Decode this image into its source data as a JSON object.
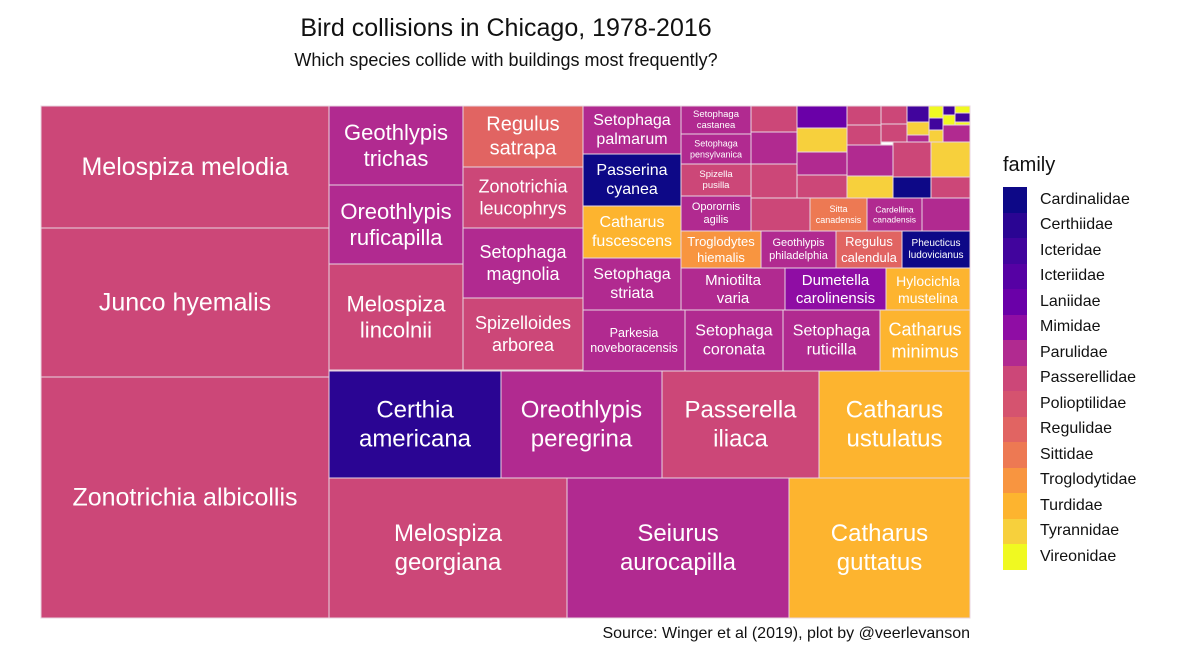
{
  "header": {
    "title": "Bird collisions in Chicago, 1978-2016",
    "subtitle": "Which species collide with buildings most frequently?"
  },
  "footer": {
    "caption": "Source: Winger et al (2019), plot by @veerlevanson"
  },
  "legend": {
    "title": "family",
    "items": [
      {
        "label": "Cardinalidae",
        "color": "#0d0887"
      },
      {
        "label": "Certhiidae",
        "color": "#2a0593"
      },
      {
        "label": "Icteridae",
        "color": "#41049d"
      },
      {
        "label": "Icteriidae",
        "color": "#5601a4"
      },
      {
        "label": "Laniidae",
        "color": "#6a00a8"
      },
      {
        "label": "Mimidae",
        "color": "#8f0da4"
      },
      {
        "label": "Parulidae",
        "color": "#b12a90"
      },
      {
        "label": "Passerellidae",
        "color": "#cc4778"
      },
      {
        "label": "Polioptilidae",
        "color": "#d5536f"
      },
      {
        "label": "Regulidae",
        "color": "#e16462"
      },
      {
        "label": "Sittidae",
        "color": "#ed7953"
      },
      {
        "label": "Troglodytidae",
        "color": "#f89540"
      },
      {
        "label": "Turdidae",
        "color": "#fdb42f"
      },
      {
        "label": "Tyrannidae",
        "color": "#f7d03c"
      },
      {
        "label": "Vireonidae",
        "color": "#f0f921"
      }
    ]
  },
  "chart_data": {
    "type": "treemap",
    "title": "Bird collisions in Chicago, 1978-2016",
    "subtitle": "Which species collide with buildings most frequently?",
    "legend_position": "right",
    "tiles": [
      {
        "species": "Melospiza melodia",
        "family": "Passerellidae"
      },
      {
        "species": "Junco hyemalis",
        "family": "Passerellidae"
      },
      {
        "species": "Zonotrichia albicollis",
        "family": "Passerellidae"
      },
      {
        "species": "Geothlypis trichas",
        "family": "Parulidae"
      },
      {
        "species": "Oreothlypis ruficapilla",
        "family": "Parulidae"
      },
      {
        "species": "Melospiza lincolnii",
        "family": "Passerellidae"
      },
      {
        "species": "Regulus satrapa",
        "family": "Regulidae"
      },
      {
        "species": "Zonotrichia leucophrys",
        "family": "Passerellidae"
      },
      {
        "species": "Setophaga magnolia",
        "family": "Parulidae"
      },
      {
        "species": "Spizelloides arborea",
        "family": "Passerellidae"
      },
      {
        "species": "Setophaga palmarum",
        "family": "Parulidae"
      },
      {
        "species": "Passerina cyanea",
        "family": "Cardinalidae"
      },
      {
        "species": "Catharus fuscescens",
        "family": "Turdidae"
      },
      {
        "species": "Setophaga striata",
        "family": "Parulidae"
      },
      {
        "species": "Setophaga castanea",
        "family": "Parulidae"
      },
      {
        "species": "Setophaga pensylvanica",
        "family": "Parulidae"
      },
      {
        "species": "Spizella pusilla",
        "family": "Passerellidae"
      },
      {
        "species": "Oporornis agilis",
        "family": "Parulidae"
      },
      {
        "species": "Troglodytes hiemalis",
        "family": "Troglodytidae"
      },
      {
        "species": "Geothlypis philadelphia",
        "family": "Parulidae"
      },
      {
        "species": "Regulus calendula",
        "family": "Regulidae"
      },
      {
        "species": "Pheucticus ludovicianus",
        "family": "Cardinalidae"
      },
      {
        "species": "Sitta canadensis",
        "family": "Sittidae"
      },
      {
        "species": "Cardellina canadensis",
        "family": "Parulidae"
      },
      {
        "species": "Mniotilta varia",
        "family": "Parulidae"
      },
      {
        "species": "Dumetella carolinensis",
        "family": "Mimidae"
      },
      {
        "species": "Hylocichla mustelina",
        "family": "Turdidae"
      },
      {
        "species": "Parkesia noveboracensis",
        "family": "Parulidae"
      },
      {
        "species": "Setophaga coronata",
        "family": "Parulidae"
      },
      {
        "species": "Setophaga ruticilla",
        "family": "Parulidae"
      },
      {
        "species": "Catharus minimus",
        "family": "Turdidae"
      },
      {
        "species": "Certhia americana",
        "family": "Certhiidae"
      },
      {
        "species": "Oreothlypis peregrina",
        "family": "Parulidae"
      },
      {
        "species": "Passerella iliaca",
        "family": "Passerellidae"
      },
      {
        "species": "Catharus ustulatus",
        "family": "Turdidae"
      },
      {
        "species": "Melospiza georgiana",
        "family": "Passerellidae"
      },
      {
        "species": "Seiurus aurocapilla",
        "family": "Parulidae"
      },
      {
        "species": "Catharus guttatus",
        "family": "Turdidae"
      }
    ]
  }
}
